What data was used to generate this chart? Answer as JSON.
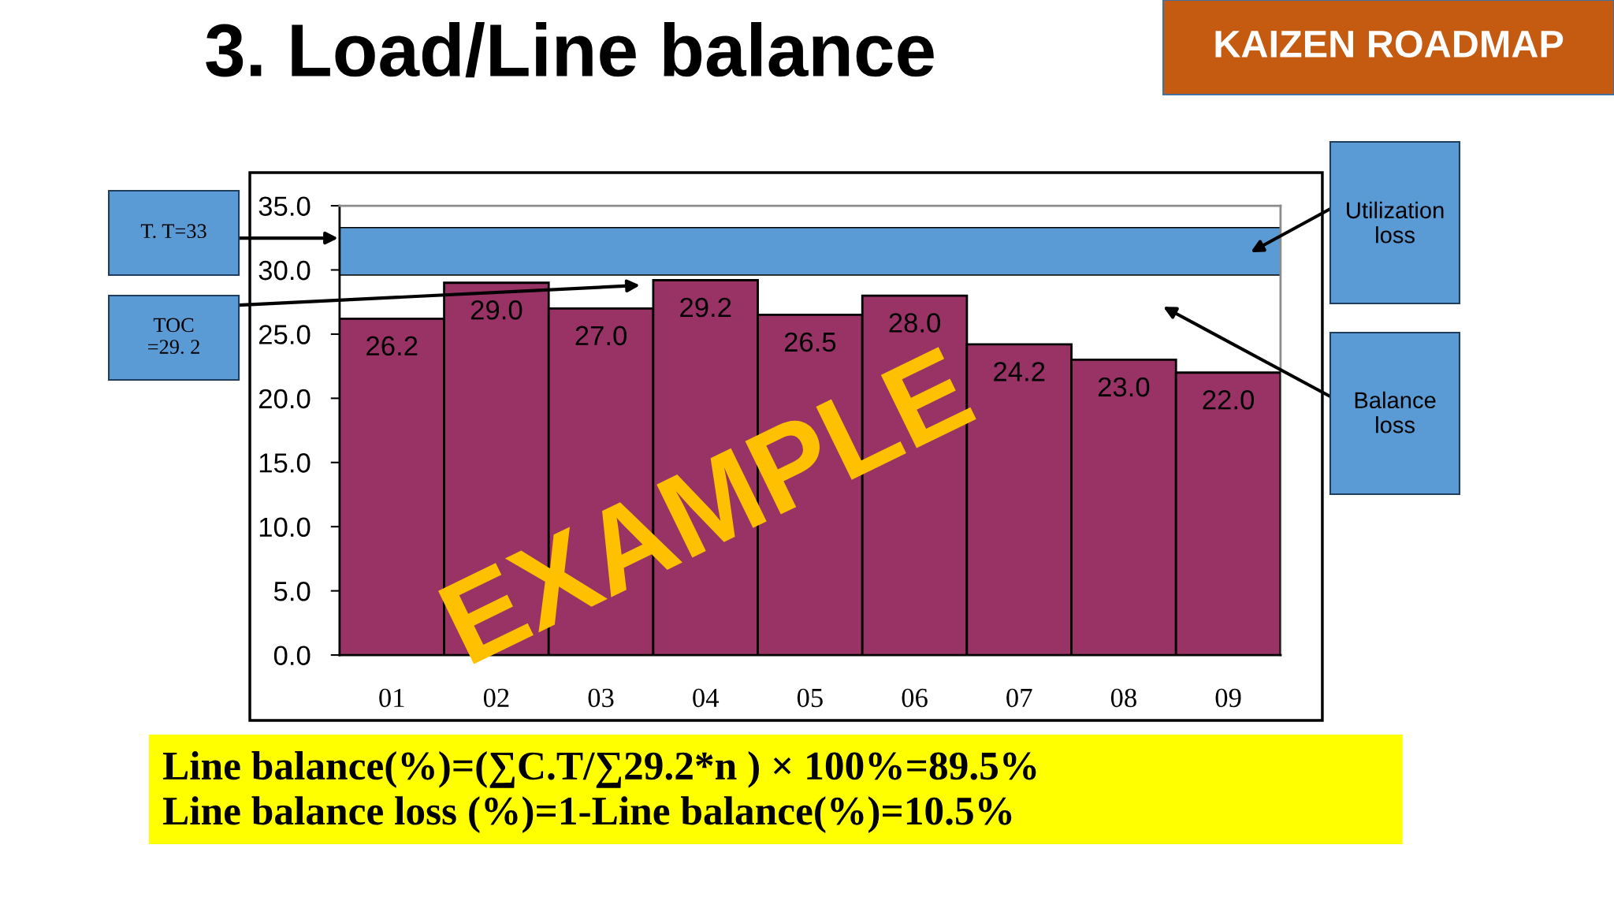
{
  "chart_data": {
    "type": "bar",
    "title": "3. Load/Line balance",
    "categories": [
      "01",
      "02",
      "03",
      "04",
      "05",
      "06",
      "07",
      "08",
      "09"
    ],
    "values": [
      26.2,
      29.0,
      27.0,
      29.2,
      26.5,
      28.0,
      24.2,
      23.0,
      22.0
    ],
    "value_labels": [
      "26.2",
      "29.0",
      "27.0",
      "29.2",
      "26.5",
      "28.0",
      "24.2",
      "23.0",
      "22.0"
    ],
    "color": "#993366",
    "ylim": [
      0,
      35
    ],
    "yticks": [
      {
        "value": 0,
        "label": "0.0"
      },
      {
        "value": 5,
        "label": "5.0"
      },
      {
        "value": 10,
        "label": "10.0"
      },
      {
        "value": 15,
        "label": "15.0"
      },
      {
        "value": 20,
        "label": "20.0"
      },
      {
        "value": 25,
        "label": "25.0"
      },
      {
        "value": 30,
        "label": "30.0"
      },
      {
        "value": 35,
        "label": "35.0"
      }
    ],
    "bands": [
      {
        "axis": "y",
        "from": 29.6,
        "to": 33.3,
        "color": "#5b9bd5"
      }
    ],
    "annotations": [
      "T. T=33",
      "TOC\n=29. 2",
      "Utilization\nloss",
      "Balance\nloss",
      "Line balance(%)=(∑C.T/∑29.2*n ) × 100%=89.5%\nLine balance loss (%)=1-Line balance(%)=10.5%",
      "KAIZEN ROADMAP",
      "EXAMPLE"
    ],
    "grid": false
  }
}
